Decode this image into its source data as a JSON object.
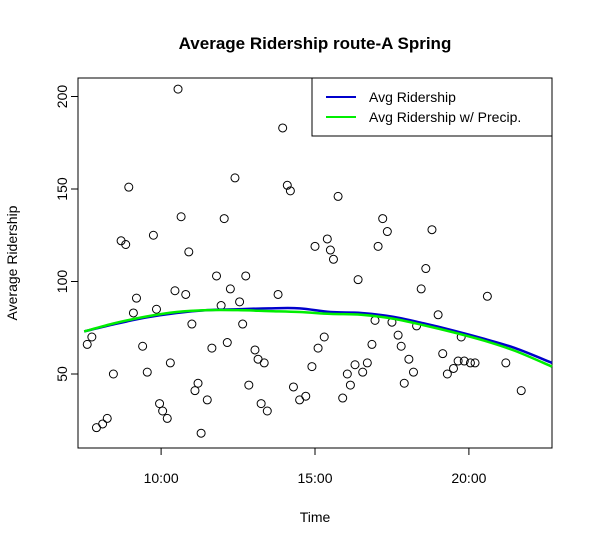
{
  "chart_data": {
    "type": "scatter",
    "title": "Average Ridership route-A Spring",
    "xlabel": "Time",
    "ylabel": "Average Ridership",
    "xlim": [
      7.3,
      22.7
    ],
    "ylim": [
      10,
      210
    ],
    "x_ticks": [
      {
        "value": 10,
        "label": "10:00"
      },
      {
        "value": 15,
        "label": "15:00"
      },
      {
        "value": 20,
        "label": "20:00"
      }
    ],
    "y_ticks": [
      {
        "value": 50,
        "label": "50"
      },
      {
        "value": 100,
        "label": "100"
      },
      {
        "value": 150,
        "label": "150"
      },
      {
        "value": 200,
        "label": "200"
      }
    ],
    "grid": false,
    "legend_position": "top-right",
    "points": [
      {
        "x": 7.6,
        "y": 66
      },
      {
        "x": 7.75,
        "y": 70
      },
      {
        "x": 7.9,
        "y": 21
      },
      {
        "x": 8.1,
        "y": 23
      },
      {
        "x": 8.25,
        "y": 26
      },
      {
        "x": 8.45,
        "y": 50
      },
      {
        "x": 8.7,
        "y": 122
      },
      {
        "x": 8.85,
        "y": 120
      },
      {
        "x": 8.95,
        "y": 151
      },
      {
        "x": 9.1,
        "y": 83
      },
      {
        "x": 9.2,
        "y": 91
      },
      {
        "x": 9.4,
        "y": 65
      },
      {
        "x": 9.55,
        "y": 51
      },
      {
        "x": 9.75,
        "y": 125
      },
      {
        "x": 9.85,
        "y": 85
      },
      {
        "x": 9.95,
        "y": 34
      },
      {
        "x": 10.05,
        "y": 30
      },
      {
        "x": 10.2,
        "y": 26
      },
      {
        "x": 10.3,
        "y": 56
      },
      {
        "x": 10.45,
        "y": 95
      },
      {
        "x": 10.55,
        "y": 204
      },
      {
        "x": 10.65,
        "y": 135
      },
      {
        "x": 10.8,
        "y": 93
      },
      {
        "x": 10.9,
        "y": 116
      },
      {
        "x": 11.0,
        "y": 77
      },
      {
        "x": 11.1,
        "y": 41
      },
      {
        "x": 11.2,
        "y": 45
      },
      {
        "x": 11.3,
        "y": 18
      },
      {
        "x": 11.5,
        "y": 36
      },
      {
        "x": 11.65,
        "y": 64
      },
      {
        "x": 11.8,
        "y": 103
      },
      {
        "x": 11.95,
        "y": 87
      },
      {
        "x": 12.05,
        "y": 134
      },
      {
        "x": 12.15,
        "y": 67
      },
      {
        "x": 12.25,
        "y": 96
      },
      {
        "x": 12.4,
        "y": 156
      },
      {
        "x": 12.55,
        "y": 89
      },
      {
        "x": 12.65,
        "y": 77
      },
      {
        "x": 12.75,
        "y": 103
      },
      {
        "x": 12.85,
        "y": 44
      },
      {
        "x": 13.05,
        "y": 63
      },
      {
        "x": 13.15,
        "y": 58
      },
      {
        "x": 13.25,
        "y": 34
      },
      {
        "x": 13.35,
        "y": 56
      },
      {
        "x": 13.45,
        "y": 30
      },
      {
        "x": 13.8,
        "y": 93
      },
      {
        "x": 13.95,
        "y": 183
      },
      {
        "x": 14.1,
        "y": 152
      },
      {
        "x": 14.2,
        "y": 149
      },
      {
        "x": 14.3,
        "y": 43
      },
      {
        "x": 14.5,
        "y": 36
      },
      {
        "x": 14.7,
        "y": 38
      },
      {
        "x": 14.9,
        "y": 54
      },
      {
        "x": 15.0,
        "y": 119
      },
      {
        "x": 15.1,
        "y": 64
      },
      {
        "x": 15.3,
        "y": 70
      },
      {
        "x": 15.4,
        "y": 123
      },
      {
        "x": 15.5,
        "y": 117
      },
      {
        "x": 15.6,
        "y": 112
      },
      {
        "x": 15.75,
        "y": 146
      },
      {
        "x": 15.9,
        "y": 37
      },
      {
        "x": 16.05,
        "y": 50
      },
      {
        "x": 16.15,
        "y": 44
      },
      {
        "x": 16.3,
        "y": 55
      },
      {
        "x": 16.4,
        "y": 101
      },
      {
        "x": 16.55,
        "y": 51
      },
      {
        "x": 16.7,
        "y": 56
      },
      {
        "x": 16.85,
        "y": 66
      },
      {
        "x": 16.95,
        "y": 79
      },
      {
        "x": 17.05,
        "y": 119
      },
      {
        "x": 17.2,
        "y": 134
      },
      {
        "x": 17.35,
        "y": 127
      },
      {
        "x": 17.5,
        "y": 78
      },
      {
        "x": 17.7,
        "y": 71
      },
      {
        "x": 17.8,
        "y": 65
      },
      {
        "x": 17.9,
        "y": 45
      },
      {
        "x": 18.05,
        "y": 58
      },
      {
        "x": 18.2,
        "y": 51
      },
      {
        "x": 18.3,
        "y": 76
      },
      {
        "x": 18.45,
        "y": 96
      },
      {
        "x": 18.6,
        "y": 107
      },
      {
        "x": 18.8,
        "y": 128
      },
      {
        "x": 19.0,
        "y": 82
      },
      {
        "x": 19.15,
        "y": 61
      },
      {
        "x": 19.3,
        "y": 50
      },
      {
        "x": 19.5,
        "y": 53
      },
      {
        "x": 19.65,
        "y": 57
      },
      {
        "x": 19.75,
        "y": 70
      },
      {
        "x": 19.85,
        "y": 57
      },
      {
        "x": 20.05,
        "y": 56
      },
      {
        "x": 20.2,
        "y": 56
      },
      {
        "x": 20.6,
        "y": 92
      },
      {
        "x": 21.2,
        "y": 56
      },
      {
        "x": 21.7,
        "y": 41
      }
    ],
    "series": [
      {
        "name": "Avg Ridership",
        "color": "#0000cc",
        "x": [
          7.5,
          8.5,
          9.5,
          10.5,
          11.5,
          12.5,
          13.5,
          14.5,
          15.5,
          16.5,
          17.5,
          18.5,
          19.5,
          20.5,
          21.5,
          22.7
        ],
        "y": [
          73,
          77,
          80.5,
          83,
          84.5,
          85,
          85.5,
          85.5,
          83.5,
          83,
          81,
          77.5,
          73.5,
          69,
          64,
          56
        ]
      },
      {
        "name": "Avg Ridership w/ Precip.",
        "color": "#00ee00",
        "x": [
          7.5,
          8.5,
          9.5,
          10.5,
          11.5,
          12.5,
          13.5,
          14.5,
          15.5,
          16.5,
          17.5,
          18.5,
          19.5,
          20.5,
          21.5,
          22.7
        ],
        "y": [
          73,
          77.5,
          81,
          83.5,
          84.5,
          84.5,
          84,
          83.5,
          82.5,
          82,
          80,
          76.5,
          72.5,
          68,
          62.5,
          54
        ]
      }
    ]
  }
}
